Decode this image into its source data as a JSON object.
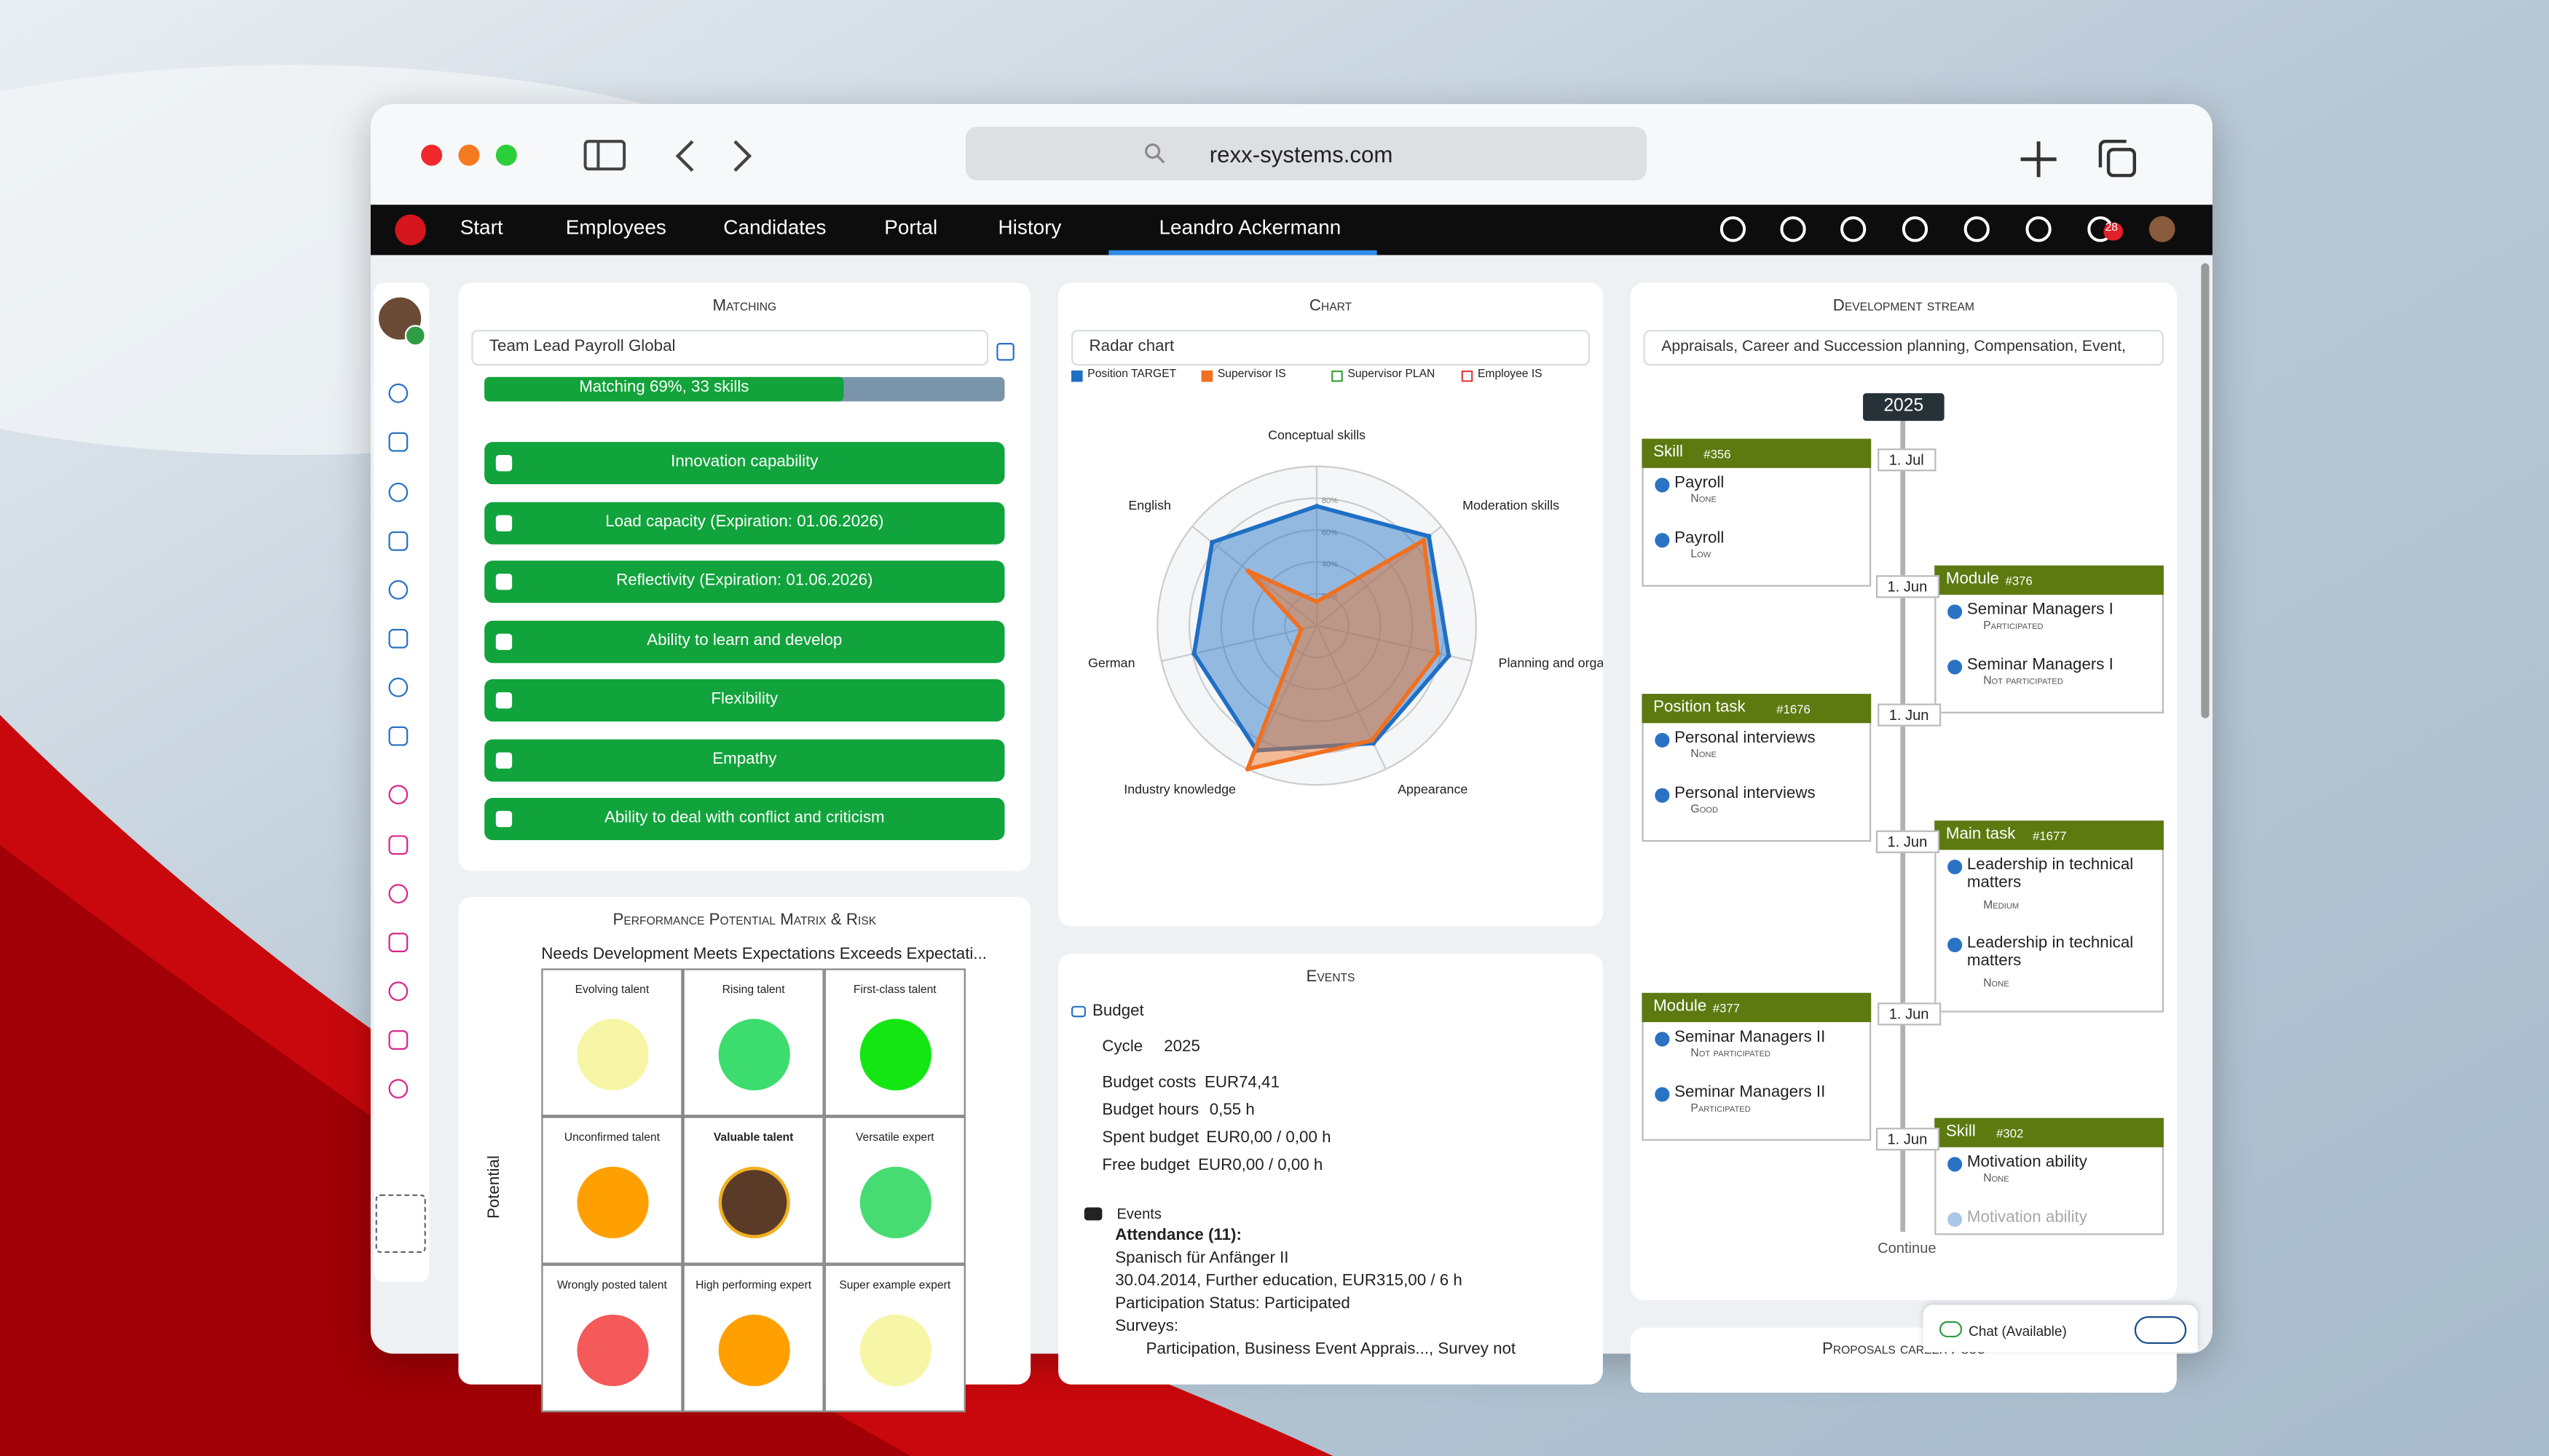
{
  "browser": {
    "url": "rexx-systems.com"
  },
  "nav": {
    "items": [
      "Start",
      "Employees",
      "Candidates",
      "Portal",
      "History"
    ],
    "user": "Leandro Ackermann",
    "notifications": "28"
  },
  "matching": {
    "title": "Matching",
    "profile": "Team Lead Payroll Global",
    "progress_label": "Matching 69%, 33 skills",
    "match_percent": 69,
    "skills": [
      "Innovation capability",
      "Load capacity (Expiration: 01.06.2026)",
      "Reflectivity (Expiration: 01.06.2026)",
      "Ability to learn and develop",
      "Flexibility",
      "Empathy",
      "Ability to deal with conflict and criticism"
    ]
  },
  "chart": {
    "title": "Chart",
    "selector": "Radar chart",
    "radar": {
      "type": "radar",
      "axes": [
        "Conceptual skills",
        "Moderation skills",
        "Planning and organizational skills",
        "Appearance",
        "Industry knowledge",
        "German",
        "English"
      ],
      "rlim": [
        0,
        100
      ],
      "rticks": [
        {
          "value": 20,
          "label": "20%"
        },
        {
          "value": 40,
          "label": "40%"
        },
        {
          "value": 60,
          "label": "60%"
        },
        {
          "value": 80,
          "label": "80%"
        }
      ],
      "series": [
        {
          "name": "Position TARGET",
          "color": "#1f6fc4",
          "values": [
            75,
            90,
            85,
            82,
            87,
            79,
            84
          ]
        },
        {
          "name": "Supervisor IS",
          "color": "#f07020",
          "values": [
            15,
            86,
            78,
            80,
            100,
            10,
            55
          ]
        },
        {
          "name": "Supervisor PLAN",
          "color": "#3aa63a"
        },
        {
          "name": "Employee IS",
          "color": "#e04040"
        }
      ]
    }
  },
  "matrix": {
    "title": "Performance Potential Matrix & Risk",
    "header": "Needs Development Meets Expectations Exceeds Expectati...",
    "y_label": "Potential",
    "cells": [
      {
        "label": "Evolving talent",
        "color": "#f6f6a6"
      },
      {
        "label": "Rising talent",
        "color": "#3ddc6e"
      },
      {
        "label": "First-class talent",
        "color": "#14e614"
      },
      {
        "label": "Unconfirmed talent",
        "color": "#ffa000"
      },
      {
        "label": "Valuable talent",
        "color": "avatar"
      },
      {
        "label": "Versatile expert",
        "color": "#46dc72"
      },
      {
        "label": "Wrongly posted talent",
        "color": "#f55a5a"
      },
      {
        "label": "High performing expert",
        "color": "#ffa000"
      },
      {
        "label": "Super example expert",
        "color": "#f6f6a6"
      }
    ]
  },
  "events": {
    "title": "Events",
    "budget_heading": "Budget",
    "budget": [
      [
        "Cycle",
        "2025"
      ],
      [
        "Budget costs",
        "EUR74,41"
      ],
      [
        "Budget hours",
        "0,55 h"
      ],
      [
        "Spent budget",
        "EUR0,00 / 0,00 h"
      ],
      [
        "Free budget",
        "EUR0,00 / 0,00 h"
      ]
    ],
    "events_heading": "Events",
    "attendance": "Attendance (11):",
    "course": "Spanisch für Anfänger II",
    "details": "30.04.2014, Further education, EUR315,00 / 6 h",
    "status": "Participation Status: Participated",
    "surveys": "Surveys:",
    "survey_item": "Participation, Business Event Apprais..., Survey not"
  },
  "development": {
    "title": "Development stream",
    "filter": "Appraisals, Career and Succession planning, Compensation, Event,",
    "year": "2025",
    "continue": "Continue",
    "items": [
      {
        "side": "left",
        "date": "1. Jul",
        "kind": "Skill",
        "id": "#356",
        "entries": [
          {
            "name": "Payroll",
            "status": "None"
          },
          {
            "name": "Payroll",
            "status": "Low"
          }
        ]
      },
      {
        "side": "right",
        "date": "1. Jun",
        "kind": "Module",
        "id": "#376",
        "entries": [
          {
            "name": "Seminar Managers I",
            "status": "Participated"
          },
          {
            "name": "Seminar Managers I",
            "status": "Not participated"
          }
        ]
      },
      {
        "side": "left",
        "date": "1. Jun",
        "kind": "Position task",
        "id": "#1676",
        "entries": [
          {
            "name": "Personal interviews",
            "status": "None"
          },
          {
            "name": "Personal interviews",
            "status": "Good"
          }
        ]
      },
      {
        "side": "right",
        "date": "1. Jun",
        "kind": "Main task",
        "id": "#1677",
        "entries": [
          {
            "name": "Leadership in technical matters",
            "status": "Medium"
          },
          {
            "name": "Leadership in technical matters",
            "status": "None"
          }
        ]
      },
      {
        "side": "left",
        "date": "1. Jun",
        "kind": "Module",
        "id": "#377",
        "entries": [
          {
            "name": "Seminar Managers II",
            "status": "Not participated"
          },
          {
            "name": "Seminar Managers II",
            "status": "Participated"
          }
        ]
      },
      {
        "side": "right",
        "date": "1. Jun",
        "kind": "Skill",
        "id": "#302",
        "entries": [
          {
            "name": "Motivation ability",
            "status": "None"
          },
          {
            "name": "Motivation ability"
          }
        ]
      }
    ]
  },
  "footer": {
    "proposals": "Proposals career / suc",
    "chat": "Chat (Available)"
  }
}
